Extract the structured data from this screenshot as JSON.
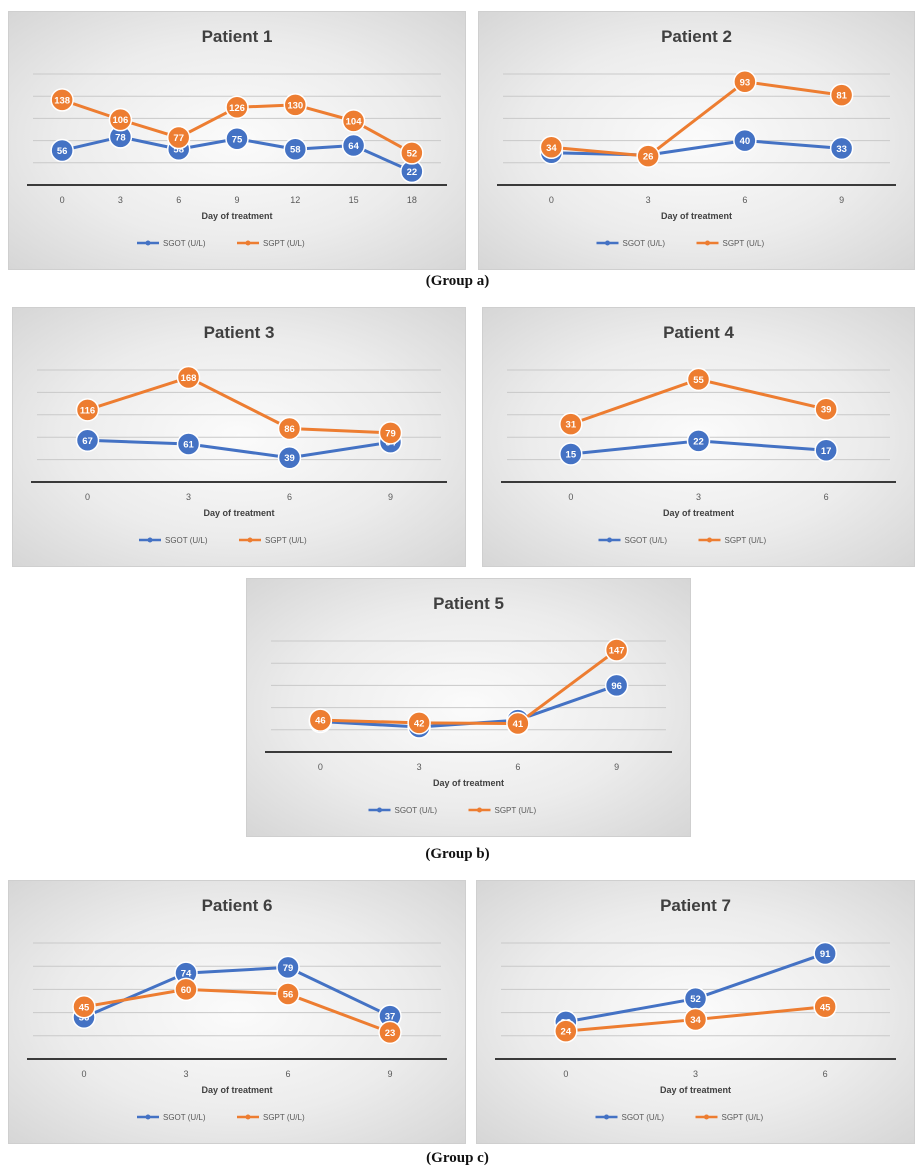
{
  "groups": [
    "(Group  a)",
    "(Group  b)",
    "(Group  c)"
  ],
  "colors": {
    "sgot": "#4472C4",
    "sgpt": "#ED7D31"
  },
  "chart_data": [
    {
      "type": "line",
      "title": "Patient 1",
      "xlabel": "Day of treatment",
      "ylabel": "",
      "x": [
        0,
        3,
        6,
        9,
        12,
        15,
        18
      ],
      "ylim": [
        0,
        180
      ],
      "grid": true,
      "legend": "bottom",
      "series": [
        {
          "name": "SGOT (U/L)",
          "values": [
            56,
            78,
            58,
            75,
            58,
            64,
            22
          ]
        },
        {
          "name": "SGPT (U/L)",
          "values": [
            138,
            106,
            77,
            126,
            130,
            104,
            52
          ]
        }
      ]
    },
    {
      "type": "line",
      "title": "Patient 2",
      "xlabel": "Day of treatment",
      "ylabel": "",
      "x": [
        0,
        3,
        6,
        9
      ],
      "ylim": [
        0,
        100
      ],
      "grid": true,
      "legend": "bottom",
      "series": [
        {
          "name": "SGOT (U/L)",
          "values": [
            29,
            27,
            40,
            33
          ]
        },
        {
          "name": "SGPT (U/L)",
          "values": [
            34,
            26,
            93,
            81
          ]
        }
      ]
    },
    {
      "type": "line",
      "title": "Patient 3",
      "xlabel": "Day of treatment",
      "ylabel": "",
      "x": [
        0,
        3,
        6,
        9
      ],
      "ylim": [
        0,
        180
      ],
      "grid": true,
      "legend": "bottom",
      "series": [
        {
          "name": "SGOT (U/L)",
          "values": [
            67,
            61,
            39,
            64
          ]
        },
        {
          "name": "SGPT (U/L)",
          "values": [
            116,
            168,
            86,
            79
          ]
        }
      ]
    },
    {
      "type": "line",
      "title": "Patient 4",
      "xlabel": "Day of treatment",
      "ylabel": "",
      "x": [
        0,
        3,
        6
      ],
      "ylim": [
        0,
        60
      ],
      "grid": true,
      "legend": "bottom",
      "series": [
        {
          "name": "SGOT (U/L)",
          "values": [
            15,
            22,
            17
          ]
        },
        {
          "name": "SGPT (U/L)",
          "values": [
            31,
            55,
            39
          ]
        }
      ]
    },
    {
      "type": "line",
      "title": "Patient 5",
      "xlabel": "Day of treatment",
      "ylabel": "",
      "x": [
        0,
        3,
        6,
        9
      ],
      "ylim": [
        0,
        160
      ],
      "grid": true,
      "legend": "bottom",
      "series": [
        {
          "name": "SGOT (U/L)",
          "values": [
            44,
            36,
            46,
            96
          ]
        },
        {
          "name": "SGPT (U/L)",
          "values": [
            46,
            42,
            41,
            147
          ]
        }
      ]
    },
    {
      "type": "line",
      "title": "Patient 6",
      "xlabel": "Day of treatment",
      "ylabel": "",
      "x": [
        0,
        3,
        6,
        9
      ],
      "ylim": [
        0,
        100
      ],
      "grid": true,
      "legend": "bottom",
      "series": [
        {
          "name": "SGOT (U/L)",
          "values": [
            36,
            74,
            79,
            37
          ]
        },
        {
          "name": "SGPT (U/L)",
          "values": [
            45,
            60,
            56,
            23
          ]
        }
      ]
    },
    {
      "type": "line",
      "title": "Patient 7",
      "xlabel": "Day of treatment",
      "ylabel": "",
      "x": [
        0,
        3,
        6
      ],
      "ylim": [
        0,
        100
      ],
      "grid": true,
      "legend": "bottom",
      "series": [
        {
          "name": "SGOT (U/L)",
          "values": [
            32,
            52,
            91
          ]
        },
        {
          "name": "SGPT (U/L)",
          "values": [
            24,
            34,
            45
          ]
        }
      ]
    }
  ]
}
